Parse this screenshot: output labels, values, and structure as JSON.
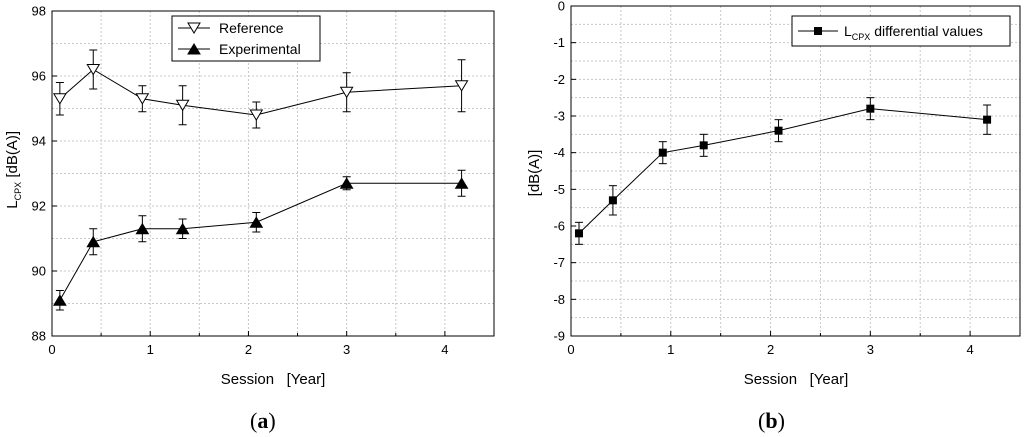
{
  "chart_data": [
    {
      "type": "line",
      "panel_label": {
        "open": "(",
        "letter": "a",
        "close": ")"
      },
      "xlabel": "Session   [Year]",
      "ylabel_main": "L",
      "ylabel_sub": "CPX",
      "ylabel_unit": " [dB(A)]",
      "xlim": [
        0,
        4.5
      ],
      "ylim": [
        88,
        98
      ],
      "xticks": [
        0,
        1,
        2,
        3,
        4
      ],
      "yticks": [
        88,
        90,
        92,
        94,
        96,
        98
      ],
      "grid": true,
      "legend_position": "top-left",
      "series": [
        {
          "name": "Reference",
          "marker": "open-triangle-down",
          "x": [
            0.08,
            0.42,
            0.92,
            1.33,
            2.08,
            3.0,
            4.17
          ],
          "y": [
            95.3,
            96.2,
            95.3,
            95.1,
            94.8,
            95.5,
            95.7
          ],
          "err": [
            0.5,
            0.6,
            0.4,
            0.6,
            0.4,
            0.6,
            0.8
          ]
        },
        {
          "name": "Experimental",
          "marker": "filled-triangle-up",
          "x": [
            0.08,
            0.42,
            0.92,
            1.33,
            2.08,
            3.0,
            4.17
          ],
          "y": [
            89.1,
            90.9,
            91.3,
            91.3,
            91.5,
            92.7,
            92.7
          ],
          "err": [
            0.3,
            0.4,
            0.4,
            0.3,
            0.3,
            0.2,
            0.4
          ]
        }
      ]
    },
    {
      "type": "line",
      "panel_label": {
        "open": "(",
        "letter": "b",
        "close": ")"
      },
      "xlabel": "Session   [Year]",
      "ylabel": "[dB(A)]",
      "xlim": [
        0,
        4.5
      ],
      "ylim": [
        -9,
        0
      ],
      "xticks": [
        0,
        1,
        2,
        3,
        4
      ],
      "yticks": [
        -9,
        -8,
        -7,
        -6,
        -5,
        -4,
        -3,
        -2,
        -1,
        0
      ],
      "grid": true,
      "legend_position": "top-right",
      "series": [
        {
          "name_main": "L",
          "name_sub": "CPX",
          "name_rest": " differential values",
          "marker": "filled-square",
          "x": [
            0.08,
            0.42,
            0.92,
            1.33,
            2.08,
            3.0,
            4.17
          ],
          "y": [
            -6.2,
            -5.3,
            -4.0,
            -3.8,
            -3.4,
            -2.8,
            -3.1
          ],
          "err": [
            0.3,
            0.4,
            0.3,
            0.3,
            0.3,
            0.3,
            0.4
          ]
        }
      ]
    }
  ]
}
